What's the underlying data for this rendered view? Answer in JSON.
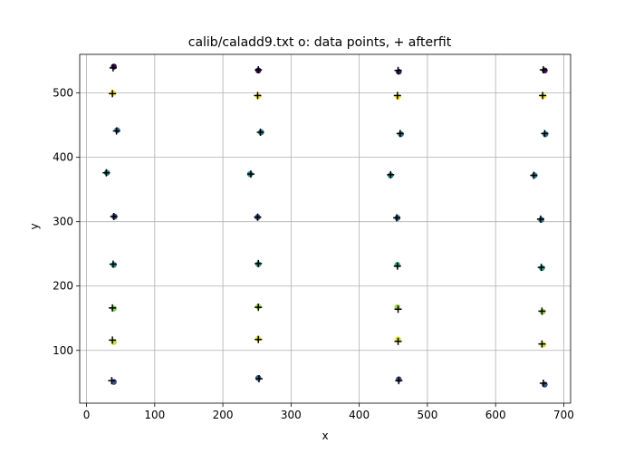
{
  "chart_data": {
    "type": "scatter",
    "title": "calib/caladd9.txt  o: data points, + afterfit",
    "xlabel": "x",
    "ylabel": "y",
    "xlim": [
      -10,
      710
    ],
    "ylim": [
      18,
      560
    ],
    "xticks": [
      0,
      100,
      200,
      300,
      400,
      500,
      600,
      700
    ],
    "yticks": [
      100,
      200,
      300,
      400,
      500
    ],
    "grid": true,
    "grid_color": "#b0b0b0",
    "colormap": "viridis",
    "series": [
      {
        "marker": "o",
        "points": [
          {
            "x": 40,
            "y": 541,
            "c": 0.0
          },
          {
            "x": 39,
            "y": 500,
            "c": 1.0
          },
          {
            "x": 45,
            "y": 442,
            "c": 0.35
          },
          {
            "x": 30,
            "y": 376,
            "c": 0.45
          },
          {
            "x": 41,
            "y": 308,
            "c": 0.2
          },
          {
            "x": 40,
            "y": 233,
            "c": 0.5
          },
          {
            "x": 40,
            "y": 165,
            "c": 0.8
          },
          {
            "x": 40,
            "y": 113,
            "c": 0.92
          },
          {
            "x": 40,
            "y": 51,
            "c": 0.25
          },
          {
            "x": 252,
            "y": 535,
            "c": 0.05
          },
          {
            "x": 252,
            "y": 495,
            "c": 1.0
          },
          {
            "x": 256,
            "y": 439,
            "c": 0.4
          },
          {
            "x": 240,
            "y": 374,
            "c": 0.45
          },
          {
            "x": 251,
            "y": 307,
            "c": 0.25
          },
          {
            "x": 252,
            "y": 234,
            "c": 0.55
          },
          {
            "x": 252,
            "y": 168,
            "c": 0.85
          },
          {
            "x": 252,
            "y": 118,
            "c": 0.95
          },
          {
            "x": 252,
            "y": 57,
            "c": 0.3
          },
          {
            "x": 458,
            "y": 533,
            "c": 0.1
          },
          {
            "x": 457,
            "y": 494,
            "c": 1.0
          },
          {
            "x": 461,
            "y": 436,
            "c": 0.4
          },
          {
            "x": 446,
            "y": 372,
            "c": 0.45
          },
          {
            "x": 456,
            "y": 306,
            "c": 0.3
          },
          {
            "x": 456,
            "y": 233,
            "c": 0.6
          },
          {
            "x": 456,
            "y": 167,
            "c": 0.85
          },
          {
            "x": 457,
            "y": 117,
            "c": 0.95
          },
          {
            "x": 458,
            "y": 55,
            "c": 0.25
          },
          {
            "x": 672,
            "y": 535,
            "c": 0.05
          },
          {
            "x": 670,
            "y": 495,
            "c": 1.0
          },
          {
            "x": 673,
            "y": 436,
            "c": 0.4
          },
          {
            "x": 657,
            "y": 372,
            "c": 0.45
          },
          {
            "x": 667,
            "y": 303,
            "c": 0.35
          },
          {
            "x": 668,
            "y": 228,
            "c": 0.55
          },
          {
            "x": 669,
            "y": 160,
            "c": 0.85
          },
          {
            "x": 670,
            "y": 109,
            "c": 0.95
          },
          {
            "x": 672,
            "y": 47,
            "c": 0.25
          }
        ]
      },
      {
        "marker": "+",
        "color": "#000000",
        "points": [
          {
            "x": 39,
            "y": 539
          },
          {
            "x": 38,
            "y": 499
          },
          {
            "x": 44,
            "y": 441
          },
          {
            "x": 29,
            "y": 376
          },
          {
            "x": 40,
            "y": 308
          },
          {
            "x": 39,
            "y": 234
          },
          {
            "x": 38,
            "y": 166
          },
          {
            "x": 38,
            "y": 116
          },
          {
            "x": 37,
            "y": 53
          },
          {
            "x": 252,
            "y": 536
          },
          {
            "x": 251,
            "y": 496
          },
          {
            "x": 255,
            "y": 439
          },
          {
            "x": 241,
            "y": 374
          },
          {
            "x": 251,
            "y": 307
          },
          {
            "x": 252,
            "y": 235
          },
          {
            "x": 252,
            "y": 167
          },
          {
            "x": 252,
            "y": 117
          },
          {
            "x": 253,
            "y": 56
          },
          {
            "x": 457,
            "y": 535
          },
          {
            "x": 456,
            "y": 496
          },
          {
            "x": 460,
            "y": 437
          },
          {
            "x": 446,
            "y": 373
          },
          {
            "x": 455,
            "y": 306
          },
          {
            "x": 456,
            "y": 231
          },
          {
            "x": 457,
            "y": 164
          },
          {
            "x": 457,
            "y": 114
          },
          {
            "x": 458,
            "y": 53
          },
          {
            "x": 670,
            "y": 536
          },
          {
            "x": 669,
            "y": 496
          },
          {
            "x": 672,
            "y": 437
          },
          {
            "x": 656,
            "y": 372
          },
          {
            "x": 666,
            "y": 304
          },
          {
            "x": 667,
            "y": 229
          },
          {
            "x": 668,
            "y": 161
          },
          {
            "x": 668,
            "y": 110
          },
          {
            "x": 670,
            "y": 49
          }
        ]
      }
    ]
  }
}
